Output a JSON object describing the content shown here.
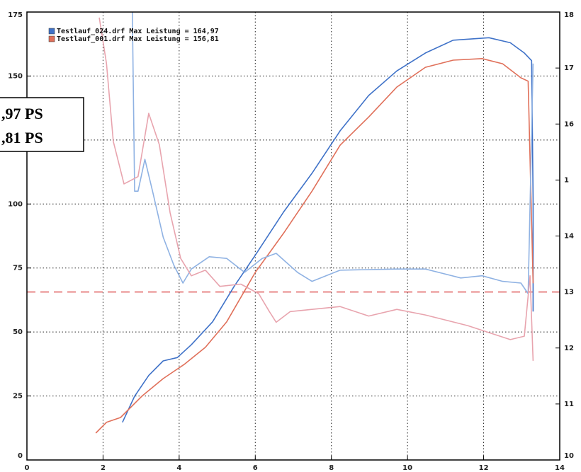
{
  "chart_data": {
    "type": "line",
    "xlim": [
      0,
      14
    ],
    "xticks": [
      0,
      2,
      4,
      6,
      8,
      10,
      12,
      14
    ],
    "ylim": [
      0,
      175
    ],
    "yticks": [
      0,
      25,
      50,
      75,
      100,
      125,
      150,
      175
    ],
    "y2lim": [
      10,
      18
    ],
    "y2ticks": [
      10,
      11,
      12,
      13,
      14,
      {
        "value": 15,
        "label": "1"
      },
      16,
      17,
      18
    ],
    "grid": true,
    "reference_line": {
      "axis": "y2",
      "value": 13,
      "color": "#e06060"
    },
    "annotations": [
      ",97 PS",
      ",81 PS"
    ],
    "series": [
      {
        "name": "Testlauf_024.drf Max Leistung = 164,97",
        "color": "#3f72c8",
        "x": [
          2.51,
          2.83,
          3.2,
          3.58,
          3.95,
          4.32,
          4.88,
          5.44,
          6.0,
          6.74,
          7.49,
          8.23,
          8.98,
          9.72,
          10.47,
          11.2,
          12.14,
          12.7,
          13.07,
          13.26,
          13.3,
          13.3
        ],
        "values": [
          14.7,
          24.9,
          33,
          38.7,
          40,
          45,
          54,
          67.7,
          80,
          96.8,
          112,
          128.6,
          142.4,
          152,
          159,
          164,
          164.97,
          163,
          159,
          156,
          102,
          58
        ]
      },
      {
        "name": "Testlauf_001.drf Max Leistung = 156,81",
        "color": "#e0705a",
        "x": [
          1.81,
          2.09,
          2.46,
          3.02,
          3.58,
          4.13,
          4.69,
          5.25,
          6.0,
          6.74,
          7.49,
          8.23,
          8.98,
          9.72,
          10.47,
          11.2,
          11.96,
          12.5,
          12.98,
          13.17,
          13.3
        ],
        "values": [
          10.5,
          14.7,
          16.6,
          24.9,
          31.8,
          37.3,
          44,
          54,
          73.3,
          88.5,
          105,
          123,
          134,
          145.7,
          153.4,
          156.2,
          156.81,
          154.8,
          149.3,
          148,
          69
        ]
      },
      {
        "axis": "y2",
        "color": "#8fb2e3",
        "x": [
          2.77,
          2.83,
          2.92,
          3.1,
          3.3,
          3.58,
          3.86,
          4.1,
          4.32,
          4.79,
          5.25,
          5.72,
          6.18,
          6.55,
          7.11,
          7.49,
          8.23,
          9.72,
          10.47,
          11.4,
          11.96,
          12.5,
          12.98,
          13.17,
          13.3
        ],
        "values": [
          18,
          14.8,
          14.8,
          15.37,
          14.8,
          13.98,
          13.48,
          13.16,
          13.41,
          13.63,
          13.6,
          13.35,
          13.6,
          13.69,
          13.35,
          13.19,
          13.39,
          13.41,
          13.41,
          13.25,
          13.29,
          13.19,
          13.16,
          12.97,
          17.08
        ]
      },
      {
        "axis": "y2",
        "color": "#e8a4ae",
        "x": [
          1.9,
          2.09,
          2.27,
          2.55,
          2.92,
          3.2,
          3.48,
          3.76,
          4.04,
          4.32,
          4.69,
          5.07,
          5.62,
          6.09,
          6.37,
          6.55,
          6.92,
          7.49,
          8.23,
          8.98,
          9.72,
          10.47,
          11.58,
          12.7,
          13.07,
          13.22,
          13.3
        ],
        "values": [
          17.9,
          17.08,
          15.69,
          14.93,
          15.06,
          16.19,
          15.63,
          14.42,
          13.6,
          13.29,
          13.39,
          13.1,
          13.14,
          12.97,
          12.65,
          12.46,
          12.65,
          12.69,
          12.74,
          12.57,
          12.69,
          12.59,
          12.4,
          12.15,
          12.21,
          13.29,
          11.77
        ]
      }
    ]
  }
}
